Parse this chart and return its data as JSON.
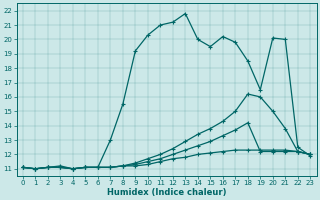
{
  "xlabel": "Humidex (Indice chaleur)",
  "bg_color": "#cce8e8",
  "line_color": "#006666",
  "xlim_min": -0.5,
  "xlim_max": 23.5,
  "ylim_min": 10.5,
  "ylim_max": 22.5,
  "xticks": [
    0,
    1,
    2,
    3,
    4,
    5,
    6,
    7,
    8,
    9,
    10,
    11,
    12,
    13,
    14,
    15,
    16,
    17,
    18,
    19,
    20,
    21,
    22,
    23
  ],
  "yticks": [
    11,
    12,
    13,
    14,
    15,
    16,
    17,
    18,
    19,
    20,
    21,
    22
  ],
  "line1_y": [
    11.1,
    11.0,
    11.1,
    11.2,
    11.0,
    11.1,
    11.1,
    13.0,
    15.5,
    19.2,
    20.3,
    21.0,
    21.2,
    21.8,
    20.0,
    19.5,
    20.2,
    19.8,
    18.5,
    16.5,
    20.1,
    20.0,
    12.5,
    11.9
  ],
  "line2_y": [
    11.1,
    11.0,
    11.1,
    11.1,
    11.0,
    11.1,
    11.1,
    11.1,
    11.2,
    11.4,
    11.7,
    12.0,
    12.4,
    12.9,
    13.4,
    13.8,
    14.3,
    15.0,
    16.2,
    16.0,
    15.0,
    13.8,
    12.2,
    12.0
  ],
  "line3_y": [
    11.1,
    11.0,
    11.1,
    11.1,
    11.0,
    11.1,
    11.1,
    11.1,
    11.2,
    11.3,
    11.5,
    11.7,
    12.0,
    12.3,
    12.6,
    12.9,
    13.3,
    13.7,
    14.2,
    12.2,
    12.2,
    12.2,
    12.2,
    12.0
  ],
  "line4_y": [
    11.1,
    11.0,
    11.1,
    11.1,
    11.0,
    11.1,
    11.1,
    11.1,
    11.2,
    11.2,
    11.3,
    11.5,
    11.7,
    11.8,
    12.0,
    12.1,
    12.2,
    12.3,
    12.3,
    12.3,
    12.3,
    12.3,
    12.2,
    12.0
  ],
  "tick_fontsize": 5,
  "xlabel_fontsize": 6,
  "linewidth": 0.9,
  "markersize": 3.5
}
